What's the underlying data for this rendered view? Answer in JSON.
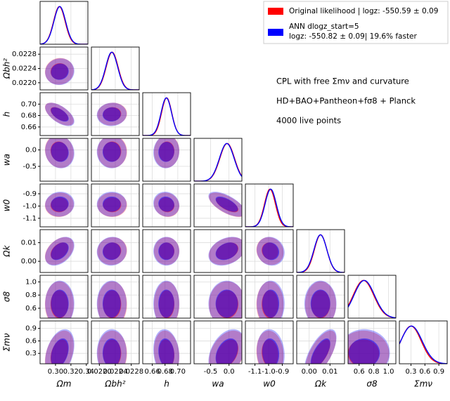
{
  "chart_data": {
    "type": "corner",
    "parameters": [
      {
        "label": "Ωm",
        "lim": [
          0.28,
          0.342
        ],
        "ticks": [
          {
            "value": 0.3,
            "label": "0.30"
          },
          0.32,
          0.34
        ]
      },
      {
        "label": "Ωbh²",
        "lim": [
          0.0218,
          0.023
        ],
        "ticks": [
          {
            "value": 0.022,
            "label": "0.0220"
          },
          0.0224,
          0.0228
        ]
      },
      {
        "label": "h",
        "lim": [
          0.645,
          0.72
        ],
        "ticks": [
          0.66,
          0.68,
          {
            "value": 0.7,
            "label": "0.70"
          }
        ]
      },
      {
        "label": "wa",
        "lim": [
          -0.95,
          0.35
        ],
        "ticks": [
          -0.5,
          {
            "value": 0,
            "label": "0.0"
          }
        ]
      },
      {
        "label": "w0",
        "lim": [
          -1.17,
          -0.82
        ],
        "ticks": [
          -1.1,
          {
            "value": -1,
            "label": "-1.0"
          },
          -0.9
        ]
      },
      {
        "label": "Ωk",
        "lim": [
          -0.006,
          0.017
        ],
        "ticks": [
          {
            "value": 0,
            "label": "0.00"
          },
          0.01
        ]
      },
      {
        "label": "σ8",
        "lim": [
          0.45,
          1.1
        ],
        "ticks": [
          0.6,
          0.8,
          {
            "value": 1,
            "label": "1.0"
          }
        ]
      },
      {
        "label": "Σmν",
        "lim": [
          0.05,
          1.08
        ],
        "ticks": [
          0.3,
          0.6,
          0.9
        ]
      }
    ],
    "series": [
      {
        "name": "Original likelihood | logz: -550.59 ± 0.09",
        "color": "#ff0000",
        "means": [
          0.305,
          0.02232,
          0.6825,
          -0.05,
          -0.99,
          0.0055,
          0.66,
          0.3
        ],
        "sigmas": [
          0.0075,
          0.00015,
          0.008,
          0.2,
          0.04,
          0.003,
          0.14,
          0.22
        ]
      },
      {
        "name": "ANN dlogz_start=5",
        "detail": "logz: -550.82 ± 0.09| 19.6% faster",
        "color": "#0000ff",
        "means": [
          0.3055,
          0.02231,
          0.682,
          -0.06,
          -0.985,
          0.0054,
          0.67,
          0.31
        ],
        "sigmas": [
          0.0076,
          0.00015,
          0.0082,
          0.2,
          0.041,
          0.0031,
          0.14,
          0.23
        ]
      }
    ],
    "correlations": [
      [],
      [
        0.05
      ],
      [
        -0.6,
        0.05
      ],
      [
        -0.1,
        0.0,
        0.05
      ],
      [
        0.05,
        0.0,
        -0.1,
        -0.65
      ],
      [
        0.4,
        0.05,
        0.0,
        0.3,
        -0.1
      ],
      [
        0.0,
        0.0,
        0.0,
        0.0,
        0.0,
        0.0
      ],
      [
        0.35,
        0.0,
        -0.15,
        0.35,
        -0.1,
        0.65,
        0.0
      ]
    ],
    "annotations": [
      "CPL with free Σmν and curvature",
      "HD+BAO+Pantheon+fσ8 + Planck",
      "4000 live points"
    ],
    "grid": true
  }
}
